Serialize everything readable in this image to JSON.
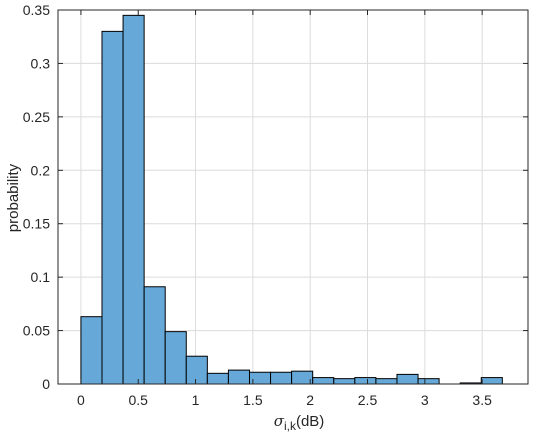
{
  "chart_data": {
    "type": "bar",
    "subtype": "histogram",
    "bin_edges": [
      0,
      0.1838,
      0.3676,
      0.5514,
      0.7352,
      0.919,
      1.1028,
      1.2866,
      1.4704,
      1.6542,
      1.838,
      2.0218,
      2.2056,
      2.3894,
      2.5732,
      2.757,
      2.9408,
      3.1246,
      3.3084,
      3.4922,
      3.676
    ],
    "values": [
      0.063,
      0.33,
      0.345,
      0.091,
      0.049,
      0.026,
      0.01,
      0.013,
      0.011,
      0.011,
      0.012,
      0.006,
      0.005,
      0.006,
      0.005,
      0.009,
      0.005,
      0.0,
      0.001,
      0.006
    ],
    "xlim": [
      -0.2,
      3.9
    ],
    "ylim": [
      0,
      0.35
    ],
    "xticks": [
      0,
      0.5,
      1,
      1.5,
      2,
      2.5,
      3,
      3.5
    ],
    "xtick_labels": [
      "0",
      "0.5",
      "1",
      "1.5",
      "2",
      "2.5",
      "3",
      "3.5"
    ],
    "yticks": [
      0,
      0.05,
      0.1,
      0.15,
      0.2,
      0.25,
      0.3,
      0.35
    ],
    "ytick_labels": [
      "0",
      "0.05",
      "0.1",
      "0.15",
      "0.2",
      "0.25",
      "0.3",
      "0.35"
    ],
    "xlabel": {
      "symbol": "σ",
      "subscript": "i,k",
      "unit": "(dB)"
    },
    "ylabel": "probability",
    "grid": true,
    "bar_color": "#66a9d9",
    "edge_color": "#000000"
  }
}
